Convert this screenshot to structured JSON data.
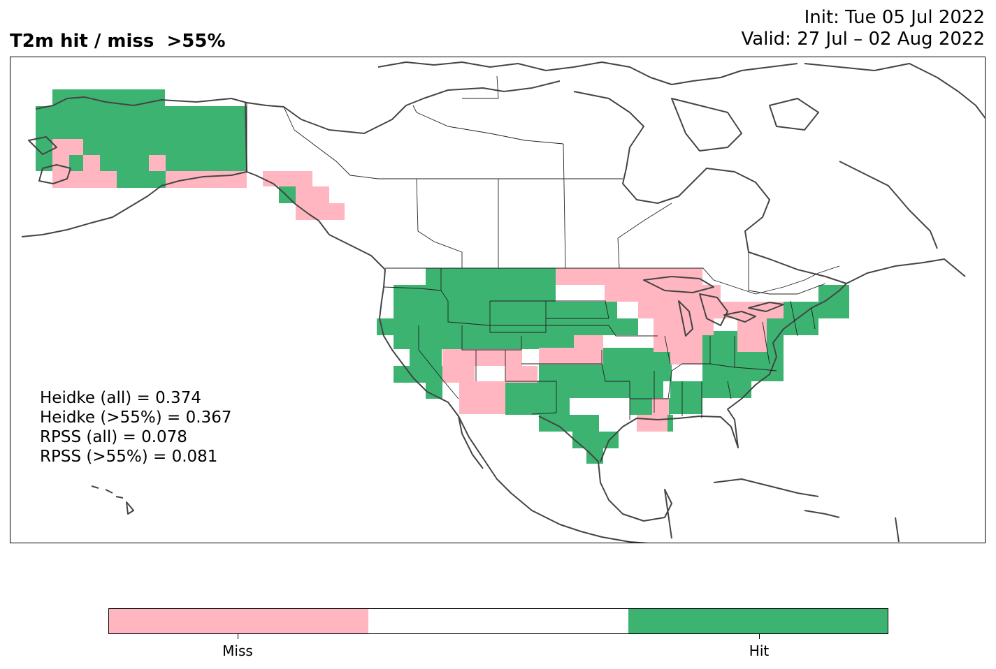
{
  "title_left": "T2m hit / miss  >55%",
  "init_text": "Init: Tue 05 Jul 2022",
  "valid_text": "Valid: 27 Jul – 02 Aug 2022",
  "stats": {
    "heidke_all": "Heidke (all) = 0.374",
    "heidke_55": "Heidke (>55%) = 0.367",
    "rpss_all": "RPSS (all) = 0.078",
    "rpss_55": "RPSS (>55%) = 0.081"
  },
  "colors": {
    "miss": "#FFB6C1",
    "neutral": "#FFFFFF",
    "hit": "#3CB371",
    "coast": "#444444",
    "border": "#222222"
  },
  "legend": {
    "miss_label": "Miss",
    "hit_label": "Hit"
  },
  "map": {
    "region": "North America",
    "categories": [
      "miss",
      "neutral",
      "hit"
    ],
    "cell_summary": "gridded hit/miss cells over Alaska, coastal British Columbia and the contiguous United States"
  }
}
